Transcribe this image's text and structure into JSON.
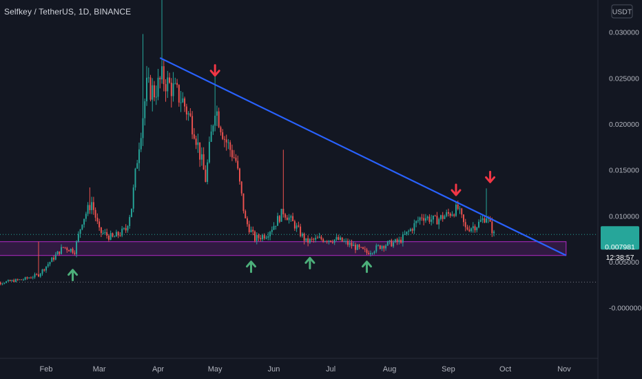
{
  "header": {
    "symbol_title": "Selfkey / TetherUS, 1D, BINANCE",
    "currency_badge": "USDT"
  },
  "colors": {
    "background": "#131722",
    "up": "#26a69a",
    "down": "#ef5350",
    "trendline": "#2962ff",
    "support_zone": "#9c27b0",
    "arrow_up": "#4caf7a",
    "arrow_down": "#f23645"
  },
  "price_label": {
    "price": "0.007981",
    "countdown": "12:38:57",
    "color": "#26a69a"
  },
  "chart_data": {
    "type": "candlestick",
    "title": "Selfkey / TetherUS, 1D, BINANCE",
    "x_ticks": [
      "Feb",
      "Mar",
      "Apr",
      "May",
      "Jun",
      "Jul",
      "Aug",
      "Sep",
      "Oct",
      "Nov"
    ],
    "y_ticks": [
      "0.030000",
      "0.025000",
      "0.020000",
      "0.015000",
      "0.010000",
      "0.005000",
      "-0.000000"
    ],
    "y_tick_values": [
      0.03,
      0.025,
      0.02,
      0.015,
      0.01,
      0.005,
      0.0
    ],
    "ylim": [
      -0.0055,
      0.0335
    ],
    "last_price": 0.007981,
    "dotted_levels": [
      0.007981,
      0.0028
    ],
    "grid": false,
    "trendline": {
      "start": [
        "2022-04-02",
        0.0272
      ],
      "end": [
        "2022-11-02",
        0.0057
      ]
    },
    "support_zone": {
      "start": "2022-01-01",
      "end": "2022-11-02",
      "low": 0.0057,
      "high": 0.0072
    },
    "annotations": [
      {
        "type": "arrow-up",
        "date": "2022-02-15",
        "price": 0.0036
      },
      {
        "type": "arrow-up",
        "date": "2022-05-20",
        "price": 0.0045
      },
      {
        "type": "arrow-up",
        "date": "2022-06-20",
        "price": 0.0049
      },
      {
        "type": "arrow-up",
        "date": "2022-07-20",
        "price": 0.0045
      },
      {
        "type": "arrow-down",
        "date": "2022-05-01",
        "price": 0.0258
      },
      {
        "type": "arrow-down",
        "date": "2022-09-05",
        "price": 0.0128
      },
      {
        "type": "arrow-down",
        "date": "2022-09-23",
        "price": 0.0142
      }
    ],
    "series_close": [
      [
        "2022-01-01",
        0.0025
      ],
      [
        "2022-01-10",
        0.0028
      ],
      [
        "2022-01-20",
        0.0031
      ],
      [
        "2022-01-28",
        0.0036
      ],
      [
        "2022-02-03",
        0.005
      ],
      [
        "2022-02-10",
        0.0066
      ],
      [
        "2022-02-16",
        0.0062
      ],
      [
        "2022-02-20",
        0.0095
      ],
      [
        "2022-02-25",
        0.0115
      ],
      [
        "2022-03-01",
        0.0083
      ],
      [
        "2022-03-08",
        0.0076
      ],
      [
        "2022-03-15",
        0.0085
      ],
      [
        "2022-03-18",
        0.011
      ],
      [
        "2022-03-22",
        0.018
      ],
      [
        "2022-03-26",
        0.024
      ],
      [
        "2022-03-30",
        0.0235
      ],
      [
        "2022-04-03",
        0.025
      ],
      [
        "2022-04-08",
        0.024
      ],
      [
        "2022-04-14",
        0.0225
      ],
      [
        "2022-04-20",
        0.0195
      ],
      [
        "2022-04-26",
        0.014
      ],
      [
        "2022-05-01",
        0.022
      ],
      [
        "2022-05-06",
        0.0185
      ],
      [
        "2022-05-12",
        0.016
      ],
      [
        "2022-05-17",
        0.0095
      ],
      [
        "2022-05-22",
        0.0075
      ],
      [
        "2022-05-28",
        0.008
      ],
      [
        "2022-06-01",
        0.009
      ],
      [
        "2022-06-06",
        0.0105
      ],
      [
        "2022-06-12",
        0.009
      ],
      [
        "2022-06-18",
        0.0072
      ],
      [
        "2022-06-25",
        0.0075
      ],
      [
        "2022-07-05",
        0.0074
      ],
      [
        "2022-07-12",
        0.0068
      ],
      [
        "2022-07-20",
        0.006
      ],
      [
        "2022-07-28",
        0.0068
      ],
      [
        "2022-08-06",
        0.0072
      ],
      [
        "2022-08-12",
        0.0085
      ],
      [
        "2022-08-18",
        0.01
      ],
      [
        "2022-08-25",
        0.0095
      ],
      [
        "2022-09-01",
        0.0102
      ],
      [
        "2022-09-06",
        0.0108
      ],
      [
        "2022-09-10",
        0.0086
      ],
      [
        "2022-09-16",
        0.009
      ],
      [
        "2022-09-21",
        0.01
      ],
      [
        "2022-09-25",
        0.008
      ]
    ]
  }
}
